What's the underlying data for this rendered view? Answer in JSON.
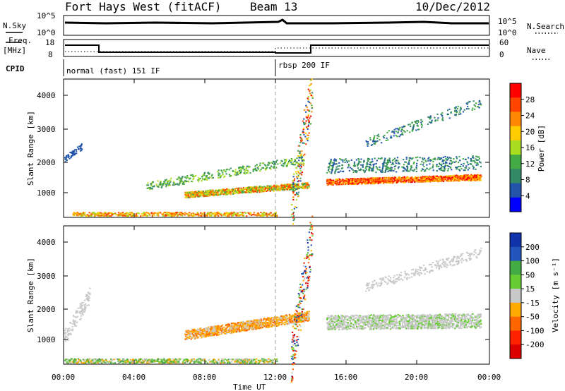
{
  "header": {
    "station": "Fort Hays West (fitACF)",
    "beam": "Beam 13",
    "date": "10/Dec/2012"
  },
  "top_panels": {
    "nsky_label": "N.Sky",
    "nsearch_label": "N.Search",
    "noise_ticks_left": [
      "10^5",
      "10^0"
    ],
    "noise_ticks_right": [
      "10^5",
      "10^0"
    ],
    "freq_label_1": "Freq.",
    "freq_label_2": "[MHz]",
    "freq_ticks": [
      "18",
      "8"
    ],
    "nave_label": "Nave",
    "nave_ticks": [
      "60",
      "0"
    ],
    "cpid_label": "CPID",
    "cpid_segments": [
      "normal (fast) 151 IF",
      "rbsp 200 IF"
    ]
  },
  "axes": {
    "ylabel": "Slant Range [km]",
    "xlabel": "Time UT",
    "yticks": [
      "4000",
      "3000",
      "2000",
      "1000"
    ],
    "xticks": [
      "00:00",
      "04:00",
      "08:00",
      "12:00",
      "16:00",
      "20:00",
      "00:00"
    ]
  },
  "power_scale": {
    "label": "Power [dB]",
    "ticks": [
      "28",
      "24",
      "20",
      "16",
      "12",
      "8",
      "4"
    ],
    "colors": [
      "#ff0000",
      "#ff4400",
      "#ff8800",
      "#ffcc00",
      "#aadd22",
      "#44aa44",
      "#338866",
      "#2255aa",
      "#0000ff"
    ]
  },
  "velocity_scale": {
    "label": "Velocity [m s⁻¹]",
    "ticks": [
      "200",
      "100",
      "50",
      "15",
      "-15",
      "-50",
      "-100",
      "-200"
    ],
    "colors": [
      "#1133aa",
      "#2255bb",
      "#44aa44",
      "#66cc33",
      "#c8c8c8",
      "#ffaa00",
      "#ff6600",
      "#ff2200",
      "#dd0000"
    ]
  },
  "chart_data": [
    {
      "type": "heatmap",
      "title": "Power",
      "xlabel": "Time UT",
      "ylabel": "Slant Range [km]",
      "xlim": [
        0,
        24
      ],
      "ylim": [
        180,
        4500
      ],
      "colorbar": "Power [dB]",
      "colorbar_range": [
        0,
        30
      ],
      "features": [
        {
          "start_hour": 6.8,
          "end_hour": 13.8,
          "range_km_start": 900,
          "range_km_end": 1200,
          "power_db": 20
        },
        {
          "start_hour": 14.8,
          "end_hour": 23.5,
          "range_km": 1300,
          "power_db": 24
        },
        {
          "start_hour": 0.0,
          "end_hour": 12.0,
          "range_km": 300,
          "power_db": 18
        }
      ]
    },
    {
      "type": "heatmap",
      "title": "Velocity",
      "xlabel": "Time UT",
      "ylabel": "Slant Range [km]",
      "xlim": [
        0,
        24
      ],
      "ylim": [
        180,
        4500
      ],
      "colorbar": "Velocity [m s⁻¹]",
      "colorbar_range": [
        -200,
        200
      ],
      "features": [
        {
          "start_hour": 6.8,
          "end_hour": 13.8,
          "range_km_start": 1100,
          "range_km_end": 1700,
          "velocity": -50
        },
        {
          "start_hour": 14.8,
          "end_hour": 23.5,
          "range_km": 1500,
          "velocity": 0
        },
        {
          "start_hour": 0.0,
          "end_hour": 12.0,
          "range_km": 300,
          "velocity": 10
        }
      ]
    }
  ]
}
